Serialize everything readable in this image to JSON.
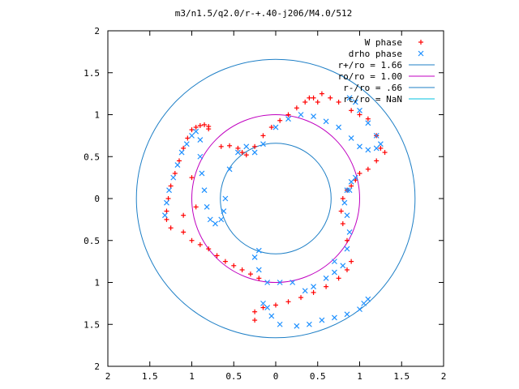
{
  "chart_data": {
    "type": "scatter",
    "title": "m3/n1.5/q2.0/r-+.40-j206/M4.0/512",
    "xlim": [
      -2,
      2
    ],
    "ylim": [
      -2,
      2
    ],
    "x_ticks": [
      -2,
      -1.5,
      -1,
      -0.5,
      0,
      0.5,
      1,
      1.5,
      2
    ],
    "y_ticks": [
      -2,
      -1.5,
      -1,
      -0.5,
      0,
      0.5,
      1,
      1.5,
      2
    ],
    "x_tick_labels": [
      "2",
      "1.5",
      "1",
      "0.5",
      "0",
      "0.5",
      "1",
      "1.5",
      "2"
    ],
    "y_tick_labels": [
      "2",
      "1.5",
      "1",
      "0.5",
      "0",
      "0.5",
      "1",
      "1.5",
      "2"
    ],
    "grid": false,
    "legend_position": "top-right",
    "colors": {
      "w_phase": "#ff0000",
      "drho_phase": "#1e90ff",
      "r_plus": "#1e7fc6",
      "r_o": "#c000c0",
      "r_minus": "#1e7fc6",
      "r_c": "#00c0e0"
    },
    "series": [
      {
        "name": "W phase",
        "marker": "plus",
        "points": [
          [
            -1.3,
            -0.25
          ],
          [
            -1.3,
            -0.15
          ],
          [
            -1.28,
            0.0
          ],
          [
            -1.25,
            0.15
          ],
          [
            -1.2,
            0.3
          ],
          [
            -1.15,
            0.45
          ],
          [
            -1.1,
            0.6
          ],
          [
            -1.05,
            0.72
          ],
          [
            -1.0,
            0.82
          ],
          [
            -0.95,
            0.85
          ],
          [
            -0.9,
            0.87
          ],
          [
            -0.85,
            0.88
          ],
          [
            -0.8,
            0.86
          ],
          [
            -0.8,
            0.83
          ],
          [
            -0.65,
            0.62
          ],
          [
            -0.55,
            0.63
          ],
          [
            -0.45,
            0.6
          ],
          [
            -0.4,
            0.55
          ],
          [
            -0.35,
            0.52
          ],
          [
            -0.25,
            0.62
          ],
          [
            -0.15,
            0.75
          ],
          [
            -0.05,
            0.85
          ],
          [
            0.05,
            0.93
          ],
          [
            0.15,
            1.0
          ],
          [
            0.25,
            1.08
          ],
          [
            0.35,
            1.15
          ],
          [
            0.45,
            1.2
          ],
          [
            0.55,
            1.25
          ],
          [
            0.65,
            1.2
          ],
          [
            0.75,
            1.15
          ],
          [
            0.9,
            1.05
          ],
          [
            1.0,
            1.0
          ],
          [
            1.1,
            0.95
          ],
          [
            1.2,
            0.75
          ],
          [
            1.25,
            0.6
          ],
          [
            1.3,
            0.55
          ],
          [
            1.2,
            0.45
          ],
          [
            1.1,
            0.35
          ],
          [
            1.0,
            0.3
          ],
          [
            0.95,
            0.22
          ],
          [
            0.9,
            0.15
          ],
          [
            0.85,
            0.1
          ],
          [
            0.8,
            0.0
          ],
          [
            0.78,
            -0.15
          ],
          [
            0.8,
            -0.3
          ],
          [
            0.85,
            -0.5
          ],
          [
            0.9,
            -0.75
          ],
          [
            0.85,
            -0.85
          ],
          [
            0.75,
            -0.95
          ],
          [
            0.6,
            -1.05
          ],
          [
            0.45,
            -1.12
          ],
          [
            0.3,
            -1.18
          ],
          [
            0.15,
            -1.23
          ],
          [
            0.0,
            -1.27
          ],
          [
            -0.15,
            -1.3
          ],
          [
            -0.25,
            -1.35
          ],
          [
            -0.25,
            -1.45
          ],
          [
            -0.2,
            -0.95
          ],
          [
            -0.3,
            -0.9
          ],
          [
            -0.4,
            -0.85
          ],
          [
            -0.5,
            -0.8
          ],
          [
            -0.6,
            -0.75
          ],
          [
            -0.7,
            -0.68
          ],
          [
            -0.8,
            -0.6
          ],
          [
            -0.9,
            -0.55
          ],
          [
            -1.0,
            -0.5
          ],
          [
            -1.1,
            -0.4
          ],
          [
            -1.25,
            -0.35
          ],
          [
            -1.1,
            -0.2
          ],
          [
            -0.95,
            -0.1
          ],
          [
            -1.0,
            0.25
          ],
          [
            0.5,
            1.15
          ],
          [
            0.4,
            1.2
          ]
        ]
      },
      {
        "name": "drho phase",
        "marker": "cross",
        "points": [
          [
            -1.32,
            -0.2
          ],
          [
            -1.3,
            -0.05
          ],
          [
            -1.27,
            0.1
          ],
          [
            -1.22,
            0.25
          ],
          [
            -1.17,
            0.4
          ],
          [
            -1.12,
            0.55
          ],
          [
            -1.06,
            0.65
          ],
          [
            -1.0,
            0.75
          ],
          [
            -0.95,
            0.8
          ],
          [
            -0.9,
            0.7
          ],
          [
            -0.9,
            0.5
          ],
          [
            -0.88,
            0.3
          ],
          [
            -0.85,
            0.1
          ],
          [
            -0.82,
            -0.1
          ],
          [
            -0.78,
            -0.25
          ],
          [
            -0.72,
            -0.3
          ],
          [
            -0.65,
            -0.25
          ],
          [
            -0.62,
            -0.15
          ],
          [
            -0.6,
            0.0
          ],
          [
            -0.55,
            0.35
          ],
          [
            -0.45,
            0.55
          ],
          [
            -0.35,
            0.62
          ],
          [
            -0.25,
            0.55
          ],
          [
            -0.15,
            0.65
          ],
          [
            0.0,
            0.85
          ],
          [
            0.15,
            0.95
          ],
          [
            0.3,
            1.0
          ],
          [
            0.45,
            0.98
          ],
          [
            0.6,
            0.92
          ],
          [
            0.75,
            0.85
          ],
          [
            0.9,
            0.72
          ],
          [
            1.0,
            0.62
          ],
          [
            1.1,
            0.58
          ],
          [
            1.2,
            0.6
          ],
          [
            1.25,
            0.65
          ],
          [
            1.2,
            0.75
          ],
          [
            1.1,
            0.9
          ],
          [
            1.0,
            1.05
          ],
          [
            0.95,
            1.15
          ],
          [
            0.88,
            1.2
          ],
          [
            0.85,
            0.1
          ],
          [
            0.9,
            0.2
          ],
          [
            0.95,
            0.25
          ],
          [
            0.88,
            0.1
          ],
          [
            0.82,
            -0.05
          ],
          [
            0.85,
            -0.2
          ],
          [
            0.88,
            -0.4
          ],
          [
            0.85,
            -0.6
          ],
          [
            0.8,
            -0.8
          ],
          [
            0.7,
            -0.88
          ],
          [
            0.6,
            -0.95
          ],
          [
            0.45,
            -1.05
          ],
          [
            0.35,
            -1.1
          ],
          [
            0.2,
            -1.0
          ],
          [
            0.05,
            -1.0
          ],
          [
            -0.1,
            -1.0
          ],
          [
            -0.2,
            -0.85
          ],
          [
            -0.25,
            -0.7
          ],
          [
            -0.2,
            -0.62
          ],
          [
            -0.15,
            -1.25
          ],
          [
            -0.1,
            -1.3
          ],
          [
            -0.05,
            -1.4
          ],
          [
            0.05,
            -1.5
          ],
          [
            0.25,
            -1.52
          ],
          [
            0.4,
            -1.5
          ],
          [
            0.55,
            -1.45
          ],
          [
            0.7,
            -1.42
          ],
          [
            0.85,
            -1.38
          ],
          [
            1.0,
            -1.32
          ],
          [
            1.05,
            -1.25
          ],
          [
            1.1,
            -1.2
          ],
          [
            0.7,
            -0.75
          ]
        ]
      },
      {
        "name": "r+/ro = 1.66",
        "type": "circle",
        "radius": 1.66
      },
      {
        "name": "ro/ro = 1.00",
        "type": "circle",
        "radius": 1.0
      },
      {
        "name": "r-/ro = .66",
        "type": "circle",
        "radius": 0.66
      },
      {
        "name": "rc/ro = NaN",
        "type": "circle",
        "radius": null
      }
    ]
  }
}
